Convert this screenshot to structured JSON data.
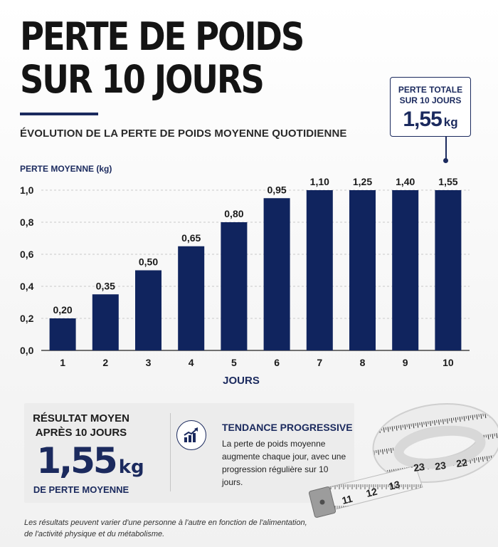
{
  "title": {
    "line1": "PERTE DE POIDS",
    "line2": "SUR 10 JOURS"
  },
  "subtitle": "ÉVOLUTION DE LA PERTE DE POIDS MOYENNE QUOTIDIENNE",
  "callout": {
    "line1": "PERTE TOTALE",
    "line2": "SUR 10 JOURS",
    "value": "1,55",
    "unit": "kg"
  },
  "chart_data": {
    "type": "bar",
    "ylabel": "PERTE MOYENNE (kg)",
    "xlabel": "JOURS",
    "categories": [
      "1",
      "2",
      "3",
      "4",
      "5",
      "6",
      "7",
      "8",
      "9",
      "10"
    ],
    "values": [
      0.2,
      0.35,
      0.5,
      0.65,
      0.8,
      0.95,
      1.1,
      1.25,
      1.4,
      1.55
    ],
    "value_labels": [
      "0,20",
      "0,35",
      "0,50",
      "0,65",
      "0,80",
      "0,95",
      "1,10",
      "1,25",
      "1,40",
      "1,55"
    ],
    "yticks": [
      0.0,
      0.2,
      0.4,
      0.6,
      0.8,
      1.0
    ],
    "ytick_labels": [
      "0,0",
      "0,2",
      "0,4",
      "0,6",
      "0,8",
      "1,0"
    ],
    "ylim": [
      0,
      1.0
    ],
    "grid": "horizontal dashed",
    "bar_color": "#10245e"
  },
  "summary": {
    "line1": "RÉSULTAT MOYEN",
    "line2": "APRÈS 10 JOURS",
    "value": "1,55",
    "unit": "kg",
    "caption": "DE PERTE MOYENNE",
    "icon": "trend-chart-icon",
    "trend_title": "TENDANCE PROGRESSIVE",
    "trend_text": "La perte de poids moyenne augmente chaque jour, avec une progression régulière sur 10 jours."
  },
  "disclaimer": "Les résultats peuvent varier d'une personne à l'autre en fonction de l'alimentation, de l'activité physique et du métabolisme.",
  "tape_numbers": [
    "11",
    "12",
    "13",
    "23",
    "23",
    "22"
  ],
  "colors": {
    "navy": "#1b2a5e",
    "bar": "#10245e",
    "title": "#141414"
  }
}
